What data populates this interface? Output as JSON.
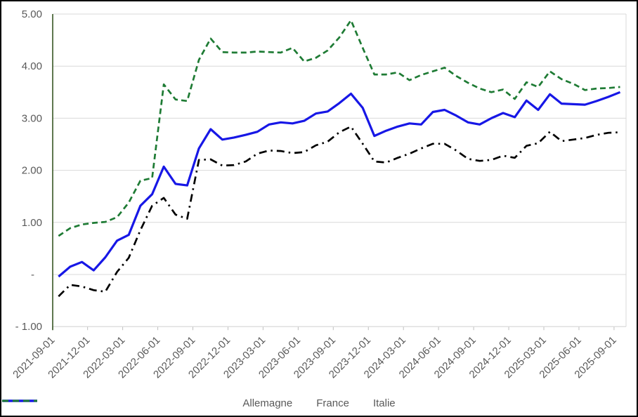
{
  "chart_data": {
    "type": "line",
    "title": "",
    "xlabel": "",
    "ylabel": "",
    "ylim": [
      -1.0,
      5.0
    ],
    "grid": "horizontal",
    "legend_position": "bottom",
    "colors": {
      "axis_line": "#375623",
      "gridline": "#D9D9D9",
      "tick": "#BFBFBF",
      "label_text": "#595959"
    },
    "y_tick_values": [
      5,
      4,
      3,
      2,
      1,
      0,
      -1
    ],
    "y_tick_labels": [
      "5.00",
      "4.00",
      "3.00",
      "2.00",
      "1.00",
      "-",
      "- 1.00"
    ],
    "x_tick_labels": [
      "2021-09-01",
      "2021-12-01",
      "2022-03-01",
      "2022-06-01",
      "2022-09-01",
      "2022-12-01",
      "2023-03-01",
      "2023-06-01",
      "2023-09-01",
      "2023-12-01",
      "2024-03-01",
      "2024-06-01",
      "2024-09-01",
      "2024-12-01",
      "2025-03-01",
      "2025-06-01",
      "2025-09-01"
    ],
    "x_monthly": [
      "2021-09-01",
      "2021-10-01",
      "2021-11-01",
      "2021-12-01",
      "2022-01-01",
      "2022-02-01",
      "2022-03-01",
      "2022-04-01",
      "2022-05-01",
      "2022-06-01",
      "2022-07-01",
      "2022-08-01",
      "2022-09-01",
      "2022-10-01",
      "2022-11-01",
      "2022-12-01",
      "2023-01-01",
      "2023-02-01",
      "2023-03-01",
      "2023-04-01",
      "2023-05-01",
      "2023-06-01",
      "2023-07-01",
      "2023-08-01",
      "2023-09-01",
      "2023-10-01",
      "2023-11-01",
      "2023-12-01",
      "2024-01-01",
      "2024-02-01",
      "2024-03-01",
      "2024-04-01",
      "2024-05-01",
      "2024-06-01",
      "2024-07-01",
      "2024-08-01",
      "2024-09-01",
      "2024-10-01",
      "2024-11-01",
      "2024-12-01",
      "2025-01-01",
      "2025-02-01",
      "2025-03-01",
      "2025-04-01",
      "2025-05-01",
      "2025-06-01",
      "2025-07-01",
      "2025-08-01",
      "2025-09-01"
    ],
    "series": [
      {
        "name": "Allemagne",
        "color": "#000000",
        "line_style": "dash-dot",
        "values": [
          -0.42,
          -0.2,
          -0.23,
          -0.3,
          -0.33,
          0.05,
          0.32,
          0.85,
          1.32,
          1.47,
          1.15,
          1.07,
          2.2,
          2.21,
          2.09,
          2.1,
          2.17,
          2.32,
          2.38,
          2.37,
          2.33,
          2.35,
          2.48,
          2.55,
          2.73,
          2.84,
          2.51,
          2.17,
          2.15,
          2.24,
          2.32,
          2.42,
          2.51,
          2.51,
          2.38,
          2.22,
          2.18,
          2.2,
          2.28,
          2.24,
          2.47,
          2.52,
          2.74,
          2.56,
          2.59,
          2.62,
          2.68,
          2.72,
          2.73
        ]
      },
      {
        "name": "France",
        "color": "#1717E6",
        "line_style": "solid",
        "values": [
          -0.04,
          0.15,
          0.24,
          0.08,
          0.33,
          0.65,
          0.76,
          1.32,
          1.54,
          2.07,
          1.74,
          1.71,
          2.42,
          2.79,
          2.59,
          2.63,
          2.68,
          2.74,
          2.88,
          2.92,
          2.9,
          2.95,
          3.09,
          3.13,
          3.29,
          3.47,
          3.2,
          2.66,
          2.76,
          2.84,
          2.9,
          2.88,
          3.12,
          3.16,
          3.05,
          2.92,
          2.88,
          3.0,
          3.1,
          3.02,
          3.34,
          3.16,
          3.46,
          3.28,
          3.27,
          3.26,
          3.33,
          3.41,
          3.5
        ]
      },
      {
        "name": "Italie",
        "color": "#1E7B34",
        "line_style": "dashed",
        "values": [
          0.74,
          0.89,
          0.96,
          0.99,
          1.01,
          1.1,
          1.38,
          1.8,
          1.85,
          3.65,
          3.36,
          3.33,
          4.12,
          4.53,
          4.27,
          4.26,
          4.26,
          4.28,
          4.27,
          4.26,
          4.35,
          4.09,
          4.16,
          4.3,
          4.55,
          4.88,
          4.35,
          3.84,
          3.84,
          3.88,
          3.73,
          3.83,
          3.9,
          3.97,
          3.81,
          3.68,
          3.57,
          3.5,
          3.55,
          3.37,
          3.69,
          3.6,
          3.9,
          3.75,
          3.66,
          3.54,
          3.57,
          3.58,
          3.6
        ]
      }
    ]
  }
}
